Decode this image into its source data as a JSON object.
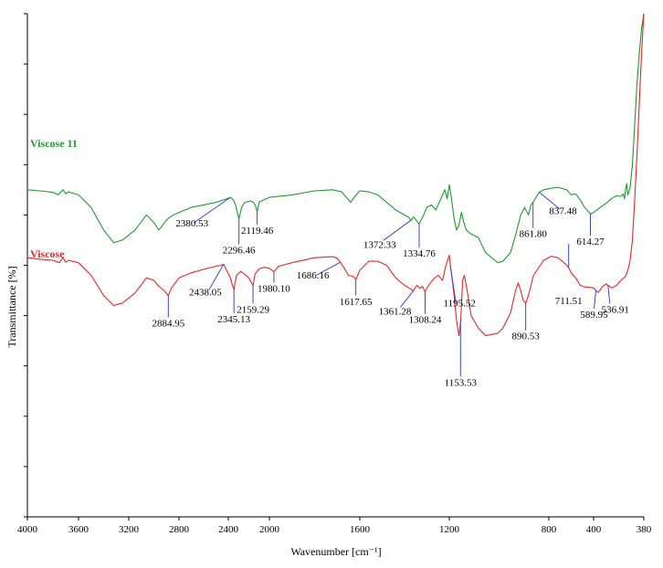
{
  "chart_data": {
    "type": "line",
    "title": "",
    "xlabel": "Wavenumber [cm⁻¹]",
    "ylabel": "Transmittance [%]",
    "xlim": [
      4000,
      380
    ],
    "ylim": [
      0,
      100
    ],
    "x_ticks": [
      "4000",
      "3600",
      "3200",
      "2800",
      "2400",
      "2000",
      "1600",
      "1200",
      "800",
      "400",
      "380"
    ],
    "x_tick_values": [
      4000,
      3600,
      3200,
      2800,
      2400,
      2000,
      1600,
      1200,
      800,
      400,
      380
    ],
    "series": [
      {
        "name": "Viscose 11",
        "color": "#1f9a2e",
        "x": [
          4000,
          3900,
          3800,
          3760,
          3720,
          3700,
          3680,
          3600,
          3500,
          3400,
          3320,
          3250,
          3150,
          3060,
          3000,
          2960,
          2900,
          2860,
          2800,
          2700,
          2600,
          2500,
          2400,
          2380,
          2350,
          2330,
          2296,
          2270,
          2240,
          2180,
          2150,
          2135,
          2119,
          2100,
          2000,
          1900,
          1800,
          1720,
          1680,
          1660,
          1640,
          1620,
          1600,
          1560,
          1520,
          1480,
          1440,
          1400,
          1380,
          1372,
          1360,
          1345,
          1335,
          1320,
          1300,
          1280,
          1260,
          1240,
          1220,
          1210,
          1200,
          1190,
          1180,
          1170,
          1160,
          1150,
          1140,
          1130,
          1110,
          1080,
          1050,
          1000,
          980,
          950,
          930,
          910,
          895,
          880,
          870,
          862,
          850,
          838,
          820,
          790,
          760,
          720,
          700,
          680,
          660,
          640,
          620,
          614,
          600,
          570,
          540,
          520,
          500,
          480,
          470,
          465,
          460,
          455,
          450,
          440,
          430,
          420,
          410,
          400,
          390,
          380
        ],
        "values": [
          65,
          64.8,
          64.5,
          64.0,
          65.0,
          64.2,
          64.6,
          64.0,
          61.5,
          57.0,
          54.5,
          55.0,
          57.0,
          60.0,
          58.5,
          57.0,
          59.0,
          59.8,
          60.5,
          61.5,
          62.0,
          62.5,
          63.3,
          63.5,
          63.0,
          62.0,
          59.2,
          61.5,
          62.5,
          62.8,
          62.4,
          61.8,
          60.6,
          62.6,
          63.5,
          64.0,
          64.8,
          65.0,
          64.6,
          63.5,
          62.5,
          63.8,
          64.8,
          64.6,
          64.0,
          62.5,
          61.0,
          60.0,
          59.5,
          58.9,
          59.6,
          58.8,
          58.2,
          59.5,
          61.5,
          62.0,
          61.0,
          63.0,
          65.0,
          63.2,
          66.0,
          63.0,
          59.2,
          57.0,
          58.0,
          60.5,
          58.5,
          57.0,
          56.2,
          55.5,
          52.5,
          50.5,
          50.8,
          52.5,
          56.0,
          60.0,
          61.5,
          60.0,
          62.0,
          62.5,
          63.5,
          64.5,
          65.0,
          65.3,
          65.5,
          65.0,
          64.0,
          64.2,
          63.0,
          61.5,
          60.5,
          60.2,
          60.5,
          61.5,
          62.5,
          63.3,
          63.8,
          63.7,
          64.2,
          63.2,
          65.0,
          66.2,
          64.0,
          65.5,
          70.0,
          78.0,
          86.0,
          92.0,
          97.0,
          100.0
        ]
      },
      {
        "name": "Viscose",
        "color": "#e8262a",
        "x": [
          4000,
          3900,
          3800,
          3750,
          3720,
          3700,
          3680,
          3600,
          3500,
          3400,
          3320,
          3250,
          3150,
          3060,
          3000,
          2960,
          2920,
          2885,
          2860,
          2800,
          2700,
          2600,
          2500,
          2460,
          2438,
          2410,
          2380,
          2360,
          2345,
          2320,
          2280,
          2240,
          2200,
          2175,
          2159,
          2140,
          2100,
          2050,
          2000,
          1980,
          1960,
          1900,
          1800,
          1720,
          1700,
          1686,
          1670,
          1650,
          1630,
          1617,
          1600,
          1560,
          1520,
          1480,
          1440,
          1400,
          1380,
          1361,
          1345,
          1330,
          1320,
          1308,
          1300,
          1285,
          1270,
          1250,
          1230,
          1215,
          1200,
          1196,
          1190,
          1180,
          1170,
          1160,
          1153,
          1145,
          1138,
          1130,
          1110,
          1080,
          1050,
          1000,
          980,
          950,
          930,
          920,
          910,
          900,
          890,
          880,
          860,
          820,
          790,
          760,
          740,
          720,
          711,
          700,
          680,
          660,
          640,
          620,
          600,
          590,
          580,
          570,
          560,
          545,
          537,
          520,
          500,
          480,
          460,
          450,
          440,
          430,
          420,
          410,
          400,
          390,
          380
        ],
        "values": [
          51.5,
          51.2,
          51.0,
          50.5,
          51.5,
          50.6,
          51.0,
          50.5,
          48.0,
          44.0,
          42.0,
          42.5,
          44.5,
          47.5,
          47.0,
          45.8,
          45.0,
          44.0,
          45.5,
          47.5,
          48.5,
          49.2,
          49.8,
          50.0,
          50.2,
          48.8,
          47.5,
          46.0,
          45.2,
          48.0,
          48.8,
          48.2,
          47.5,
          46.5,
          46.0,
          48.3,
          49.3,
          49.6,
          49.4,
          48.7,
          49.8,
          50.5,
          51.5,
          51.7,
          51.4,
          50.6,
          49.5,
          48.0,
          47.8,
          47.2,
          49.0,
          50.8,
          50.8,
          50.0,
          47.5,
          46.0,
          45.5,
          44.9,
          46.0,
          45.4,
          45.8,
          44.7,
          45.5,
          46.5,
          47.3,
          48.0,
          47.0,
          50.0,
          52.0,
          50.0,
          48.0,
          44.0,
          39.0,
          36.0,
          39.0,
          47.0,
          48.0,
          46.0,
          40.0,
          37.5,
          36.0,
          36.5,
          37.5,
          40.5,
          45.0,
          46.5,
          45.0,
          43.0,
          42.5,
          44.0,
          48.0,
          51.0,
          51.8,
          51.5,
          50.8,
          50.0,
          49.5,
          48.5,
          47.5,
          46.0,
          45.7,
          45.6,
          45.5,
          45.0,
          44.6,
          45.2,
          45.8,
          46.3,
          46.0,
          45.5,
          46.0,
          47.0,
          47.8,
          49.0,
          51.0,
          55.0,
          63.0,
          72.0,
          82.0,
          92.0,
          100.0
        ]
      }
    ],
    "annotations": [
      {
        "series": "Viscose 11",
        "text": "2380.53",
        "x": 2380.53
      },
      {
        "series": "Viscose 11",
        "text": "2296.46",
        "x": 2296.46
      },
      {
        "series": "Viscose 11",
        "text": "2119.46",
        "x": 2119.46
      },
      {
        "series": "Viscose 11",
        "text": "1372.33",
        "x": 1372.33
      },
      {
        "series": "Viscose 11",
        "text": "1334.76",
        "x": 1334.76
      },
      {
        "series": "Viscose 11",
        "text": "861.80",
        "x": 861.8
      },
      {
        "series": "Viscose 11",
        "text": "837.48",
        "x": 837.48
      },
      {
        "series": "Viscose 11",
        "text": "614.27",
        "x": 614.27
      },
      {
        "series": "Viscose",
        "text": "2884.95",
        "x": 2884.95
      },
      {
        "series": "Viscose",
        "text": "2438.05",
        "x": 2438.05
      },
      {
        "series": "Viscose",
        "text": "2345.13",
        "x": 2345.13
      },
      {
        "series": "Viscose",
        "text": "2159.29",
        "x": 2159.29
      },
      {
        "series": "Viscose",
        "text": "1980.10",
        "x": 1980.1
      },
      {
        "series": "Viscose",
        "text": "1686.16",
        "x": 1686.16
      },
      {
        "series": "Viscose",
        "text": "1617.65",
        "x": 1617.65
      },
      {
        "series": "Viscose",
        "text": "1361.28",
        "x": 1361.28
      },
      {
        "series": "Viscose",
        "text": "1308.24",
        "x": 1308.24
      },
      {
        "series": "Viscose",
        "text": "1195.52",
        "x": 1195.52
      },
      {
        "series": "Viscose",
        "text": "1153.53",
        "x": 1153.53
      },
      {
        "series": "Viscose",
        "text": "890.53",
        "x": 890.53
      },
      {
        "series": "Viscose",
        "text": "711.51",
        "x": 711.51
      },
      {
        "series": "Viscose",
        "text": "589.95",
        "x": 589.95
      },
      {
        "series": "Viscose",
        "text": "536.91",
        "x": 536.91
      }
    ],
    "grid": false,
    "legend": "inline labels above each trace (left)"
  }
}
